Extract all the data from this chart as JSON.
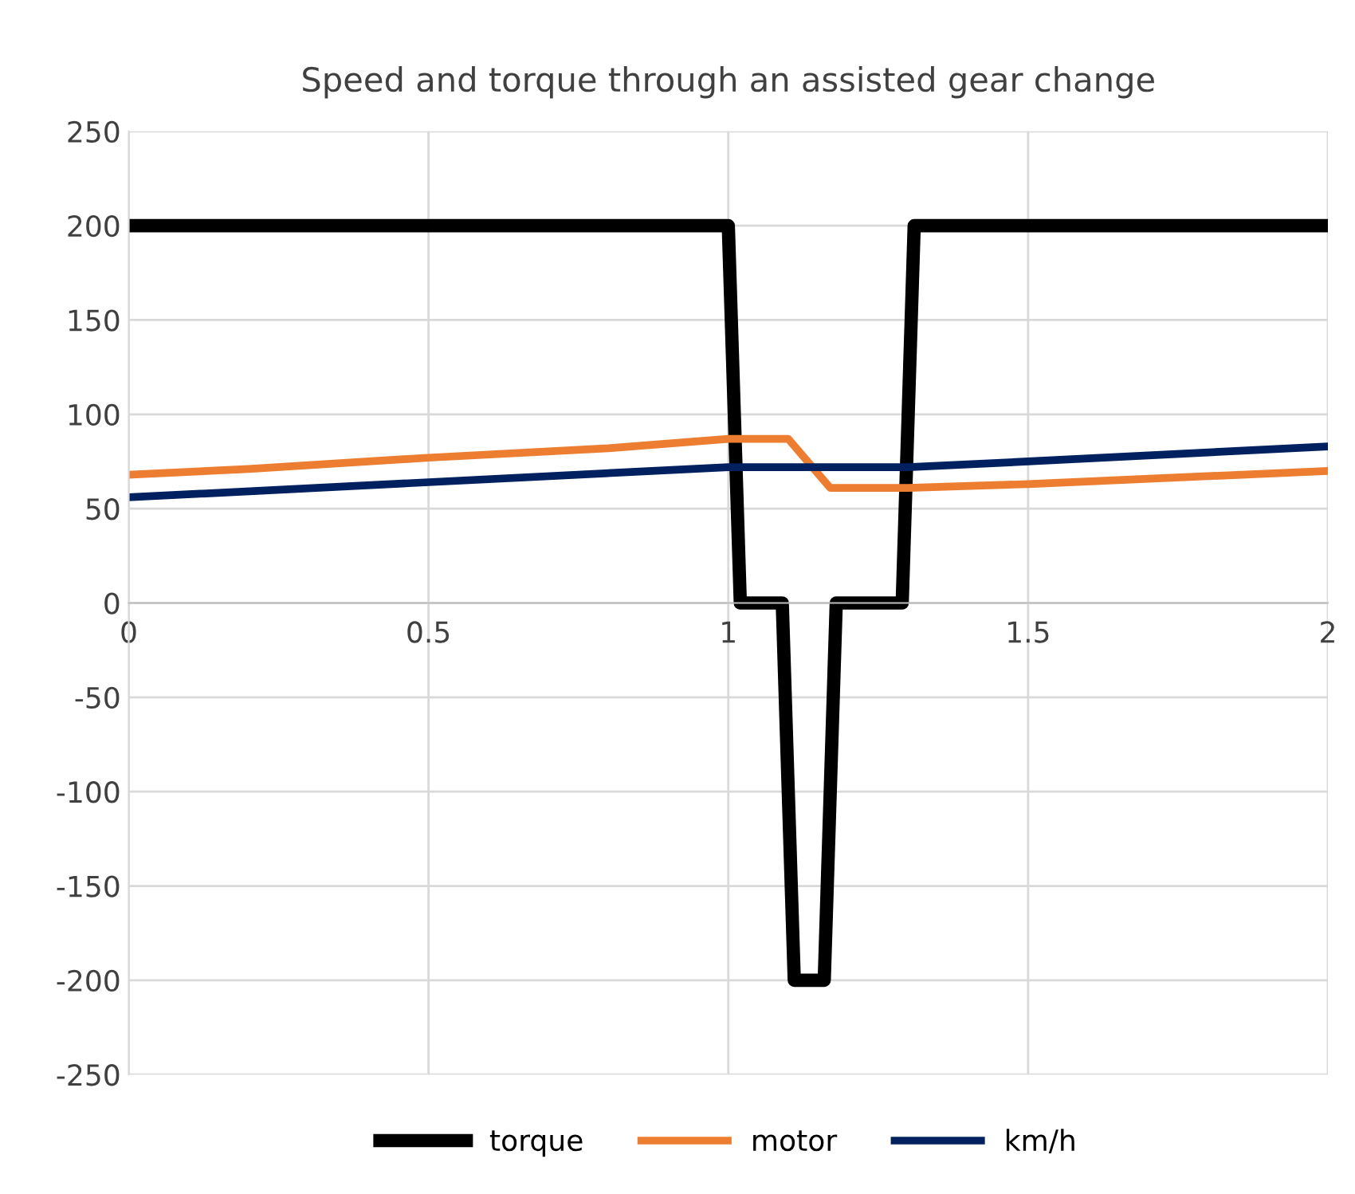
{
  "chart_data": {
    "type": "line",
    "title": "Speed and torque through an assisted gear change",
    "xlim": [
      0,
      2
    ],
    "xticks": [
      0,
      0.5,
      1,
      1.5,
      2
    ],
    "ylim": [
      -250,
      250
    ],
    "yticks": [
      -250,
      -200,
      -150,
      -100,
      -50,
      0,
      50,
      100,
      150,
      200,
      250
    ],
    "grid": true,
    "legend": "bottom",
    "marker": "none",
    "line_style": "solid",
    "series": [
      {
        "name": "torque",
        "color": "#000000",
        "x": [
          0,
          1.0,
          1.02,
          1.09,
          1.11,
          1.16,
          1.18,
          1.29,
          1.31,
          2
        ],
        "values": [
          200,
          200,
          0,
          0,
          -200,
          -200,
          0,
          0,
          200,
          200
        ]
      },
      {
        "name": "motor",
        "color": "#ed7d31",
        "x": [
          0,
          0.2,
          0.5,
          0.8,
          1.0,
          1.1,
          1.17,
          1.3,
          1.5,
          2
        ],
        "values": [
          68,
          71,
          77,
          82,
          87,
          87,
          61,
          61,
          63,
          70
        ]
      },
      {
        "name": "km/h",
        "color": "#002060",
        "x": [
          0,
          0.5,
          1.0,
          1.3,
          1.5,
          2
        ],
        "values": [
          56,
          64,
          72,
          72,
          75,
          83
        ]
      }
    ]
  }
}
